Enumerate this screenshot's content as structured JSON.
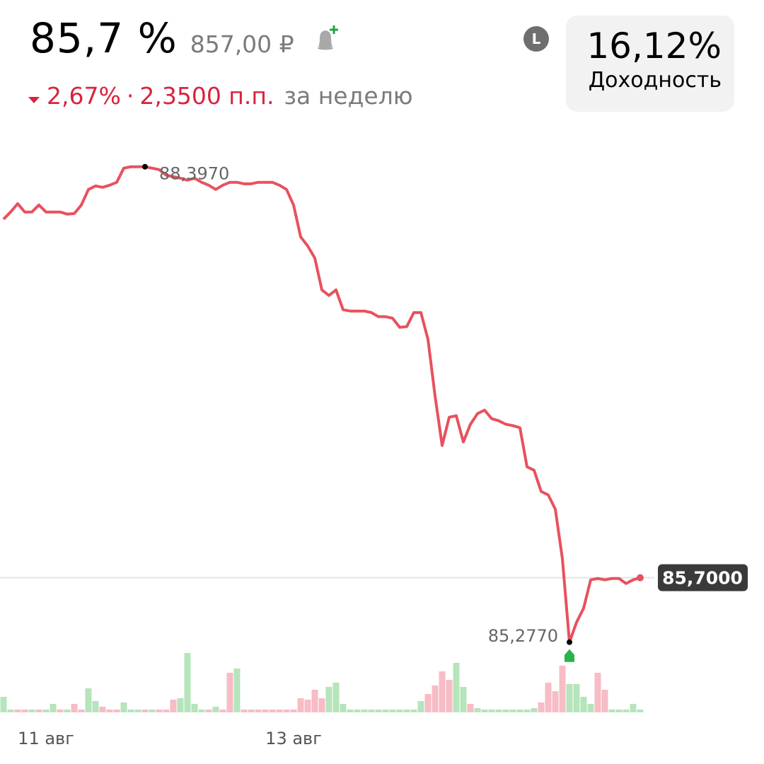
{
  "header": {
    "title": "85,7 %",
    "price": "857,00 ₽",
    "change_percent": "2,67%",
    "separator": "·",
    "change_points": "2,3500 п.п.",
    "period": "за неделю",
    "badge": "L",
    "yield_value": "16,12%",
    "yield_label": "Доходность"
  },
  "chart_data": {
    "type": "line",
    "categories": [
      null,
      null,
      null,
      null,
      null,
      null,
      "11 авг",
      null,
      null,
      null,
      null,
      null,
      null,
      null,
      null,
      null,
      null,
      null,
      null,
      null,
      null,
      null,
      null,
      null,
      null,
      null,
      null,
      null,
      null,
      null,
      null,
      null,
      null,
      null,
      null,
      null,
      null,
      null,
      null,
      null,
      null,
      "13 авг",
      null,
      null,
      null,
      null,
      null,
      null,
      null,
      null,
      null,
      null,
      null,
      null,
      null,
      null,
      null,
      null,
      null,
      null,
      null,
      null,
      null,
      null,
      null,
      null,
      null,
      null,
      null,
      null,
      null,
      null,
      null,
      null,
      null,
      null,
      null,
      null,
      null,
      null,
      null,
      null,
      null,
      null,
      null,
      null,
      null,
      null,
      null,
      null,
      null
    ],
    "ylim": [
      84.9,
      88.6
    ],
    "y2lim": [
      0,
      100
    ],
    "series": [
      {
        "color": "#e8515e",
        "values": [
          88.053,
          88.1,
          88.155,
          88.1,
          88.1,
          88.146,
          88.1,
          88.1,
          88.1,
          88.086,
          88.09,
          88.146,
          88.248,
          88.271,
          88.262,
          88.276,
          88.295,
          88.388,
          88.397,
          88.397,
          88.397,
          88.388,
          88.378,
          88.341,
          88.332,
          88.322,
          88.309,
          88.322,
          88.295,
          88.276,
          88.248,
          88.276,
          88.295,
          88.295,
          88.285,
          88.285,
          88.295,
          88.295,
          88.295,
          88.276,
          88.248,
          88.146,
          87.937,
          87.877,
          87.798,
          87.589,
          87.552,
          87.589,
          87.459,
          87.45,
          87.45,
          87.45,
          87.44,
          87.413,
          87.413,
          87.403,
          87.343,
          87.348,
          87.44,
          87.44,
          87.264,
          86.893,
          86.568,
          86.753,
          86.763,
          86.591,
          86.707,
          86.777,
          86.8,
          86.744,
          86.73,
          86.707,
          86.698,
          86.684,
          86.428,
          86.405,
          86.266,
          86.243,
          86.15,
          85.825,
          85.277,
          85.407,
          85.5,
          85.686,
          85.695,
          85.686,
          85.695,
          85.695,
          85.662,
          85.686,
          85.7
        ],
        "value_labels": [
          null,
          null,
          null,
          null,
          null,
          null,
          null,
          null,
          null,
          null,
          null,
          null,
          null,
          null,
          null,
          null,
          null,
          null,
          null,
          null,
          "88,3970",
          null,
          null,
          null,
          null,
          null,
          null,
          null,
          null,
          null,
          null,
          null,
          null,
          null,
          null,
          null,
          null,
          null,
          null,
          null,
          null,
          null,
          null,
          null,
          null,
          null,
          null,
          null,
          null,
          null,
          null,
          null,
          null,
          null,
          null,
          null,
          null,
          null,
          null,
          null,
          null,
          null,
          null,
          null,
          null,
          null,
          null,
          null,
          null,
          null,
          null,
          null,
          null,
          null,
          null,
          null,
          null,
          null,
          null,
          null,
          "85,2770",
          null,
          null,
          null,
          null,
          null,
          null,
          null,
          null,
          null,
          "85,7000"
        ]
      },
      {
        "type": "bar",
        "axis": "y2",
        "values": [
          22,
          4,
          4,
          4,
          4,
          4,
          4,
          12,
          4,
          4,
          12,
          4,
          34,
          16,
          8,
          4,
          4,
          14,
          4,
          4,
          4,
          4,
          4,
          4,
          18,
          20,
          84,
          12,
          4,
          4,
          8,
          4,
          56,
          62,
          4,
          4,
          4,
          4,
          4,
          4,
          4,
          4,
          20,
          18,
          32,
          20,
          36,
          42,
          12,
          4,
          4,
          4,
          4,
          4,
          4,
          4,
          4,
          4,
          4,
          16,
          26,
          38,
          58,
          46,
          70,
          36,
          12,
          6,
          4,
          4,
          4,
          4,
          4,
          4,
          4,
          6,
          14,
          42,
          30,
          66,
          40,
          40,
          22,
          12,
          56,
          32,
          4,
          4,
          4,
          12,
          4
        ],
        "colors": [
          "#b6e4bb",
          "#b6e4bb",
          "#f7bcc6",
          "#f7bcc6",
          "#b6e4bb",
          "#f7bcc6",
          "#b6e4bb",
          "#b6e4bb",
          "#f7bcc6",
          "#b6e4bb",
          "#f7bcc6",
          "#f7bcc6",
          "#b6e4bb",
          "#b6e4bb",
          "#f7bcc6",
          "#f7bcc6",
          "#f7bcc6",
          "#b6e4bb",
          "#b6e4bb",
          "#b6e4bb",
          "#f7bcc6",
          "#b6e4bb",
          "#f7bcc6",
          "#f7bcc6",
          "#f7bcc6",
          "#b6e4bb",
          "#b6e4bb",
          "#b6e4bb",
          "#b6e4bb",
          "#f7bcc6",
          "#b6e4bb",
          "#f7bcc6",
          "#f7bcc6",
          "#b6e4bb",
          "#f7bcc6",
          "#f7bcc6",
          "#f7bcc6",
          "#f7bcc6",
          "#f7bcc6",
          "#f7bcc6",
          "#f7bcc6",
          "#f7bcc6",
          "#f7bcc6",
          "#f7bcc6",
          "#f7bcc6",
          "#f7bcc6",
          "#b6e4bb",
          "#b6e4bb",
          "#b6e4bb",
          "#b6e4bb",
          "#b6e4bb",
          "#b6e4bb",
          "#b6e4bb",
          "#b6e4bb",
          "#b6e4bb",
          "#b6e4bb",
          "#b6e4bb",
          "#b6e4bb",
          "#b6e4bb",
          "#b6e4bb",
          "#f7bcc6",
          "#f7bcc6",
          "#f7bcc6",
          "#f7bcc6",
          "#b6e4bb",
          "#b6e4bb",
          "#f7bcc6",
          "#b6e4bb",
          "#b6e4bb",
          "#b6e4bb",
          "#b6e4bb",
          "#b6e4bb",
          "#b6e4bb",
          "#b6e4bb",
          "#b6e4bb",
          "#b6e4bb",
          "#f7bcc6",
          "#f7bcc6",
          "#f7bcc6",
          "#f7bcc6",
          "#b6e4bb",
          "#b6e4bb",
          "#b6e4bb",
          "#b6e4bb",
          "#f7bcc6",
          "#f7bcc6",
          "#b6e4bb",
          "#b6e4bb",
          "#b6e4bb",
          "#b6e4bb",
          "#b6e4bb"
        ]
      }
    ]
  }
}
